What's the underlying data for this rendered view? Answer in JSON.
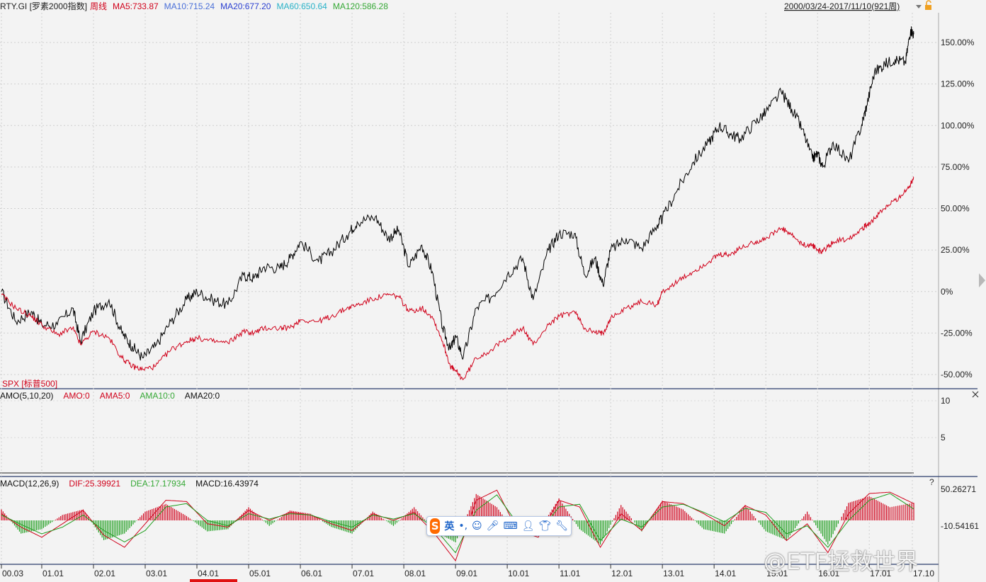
{
  "header": {
    "symbol": "RTY.GI [罗素2000指数]",
    "period": "周线",
    "ma": [
      {
        "label": "MA5:733.87",
        "color": "#d0021b"
      },
      {
        "label": "MA10:715.24",
        "color": "#4a6fd8"
      },
      {
        "label": "MA20:677.20",
        "color": "#2a3fd0"
      },
      {
        "label": "MA60:650.64",
        "color": "#2ab2c8"
      },
      {
        "label": "MA120:586.28",
        "color": "#36a836"
      }
    ],
    "range": "2000/03/24-2017/11/10(921周)"
  },
  "overlay_label": "SPX [标普500]",
  "amo": {
    "items": [
      {
        "label": "AMO(5,10,20)",
        "color": "#111111"
      },
      {
        "label": "AMO:0",
        "color": "#d0021b"
      },
      {
        "label": "AMA5:0",
        "color": "#d0021b"
      },
      {
        "label": "AMA10:0",
        "color": "#36a836"
      },
      {
        "label": "AMA20:0",
        "color": "#111111"
      }
    ],
    "ticks": [
      "10",
      "5"
    ]
  },
  "macd": {
    "items": [
      {
        "label": "MACD(12,26,9)",
        "color": "#111111"
      },
      {
        "label": "DIF:25.39921",
        "color": "#d0021b"
      },
      {
        "label": "DEA:17.17934",
        "color": "#36a836"
      },
      {
        "label": "MACD:16.43974",
        "color": "#111111"
      }
    ],
    "ticks": [
      "50.26271",
      "-10.54161"
    ],
    "help": "?"
  },
  "ime": {
    "logo": "S",
    "lang": "英",
    "punct": "•,"
  },
  "watermark": "@ETF拯救世界",
  "colors": {
    "rty": "#000000",
    "spx": "#d0021b",
    "macd_pos": "#d0021b",
    "macd_neg": "#1f9e1f",
    "grid": "#c9c9c9"
  },
  "chart_data": [
    {
      "type": "line",
      "title": "RTY.GI [罗素2000指数] 周线",
      "xlabel": "",
      "ylabel": "",
      "x_ticks": [
        "00.03",
        "01.01",
        "02.01",
        "03.01",
        "04.01",
        "05.01",
        "06.01",
        "07.01",
        "08.01",
        "09.01",
        "10.01",
        "11.01",
        "12.01",
        "13.01",
        "14.01",
        "15.01",
        "16.01",
        "17.01",
        "17.10"
      ],
      "y_ticks": [
        "150.00%",
        "125.00%",
        "100.00%",
        "75.00%",
        "50.00%",
        "25.00%",
        "0%",
        "-25.00%",
        "-50.00%"
      ],
      "ylim": [
        -50,
        160
      ],
      "series": [
        {
          "name": "RTY.GI",
          "color": "#000000",
          "x": [
            2000.22,
            2000.5,
            2000.8,
            2001.0,
            2001.3,
            2001.6,
            2001.75,
            2002.0,
            2002.3,
            2002.55,
            2002.75,
            2002.95,
            2003.2,
            2003.5,
            2003.8,
            2004.0,
            2004.3,
            2004.6,
            2004.9,
            2005.1,
            2005.3,
            2005.6,
            2005.8,
            2006.0,
            2006.35,
            2006.6,
            2006.9,
            2007.1,
            2007.45,
            2007.7,
            2007.9,
            2008.1,
            2008.35,
            2008.55,
            2008.75,
            2008.9,
            2009.0,
            2009.15,
            2009.4,
            2009.7,
            2010.0,
            2010.3,
            2010.5,
            2010.8,
            2011.0,
            2011.3,
            2011.5,
            2011.7,
            2011.85,
            2012.0,
            2012.3,
            2012.6,
            2012.9,
            2013.0,
            2013.3,
            2013.6,
            2013.9,
            2014.1,
            2014.3,
            2014.5,
            2014.8,
            2015.0,
            2015.3,
            2015.5,
            2015.7,
            2015.9,
            2016.0,
            2016.1,
            2016.3,
            2016.6,
            2016.85,
            2016.95,
            2017.1,
            2017.3,
            2017.5,
            2017.7,
            2017.8,
            2017.86
          ],
          "y": [
            0,
            -18,
            -12,
            -20,
            -20,
            -10,
            -30,
            -12,
            -5,
            -25,
            -33,
            -40,
            -33,
            -18,
            -5,
            0,
            -5,
            -8,
            10,
            8,
            15,
            14,
            20,
            30,
            18,
            24,
            34,
            42,
            45,
            32,
            37,
            15,
            28,
            12,
            -22,
            -35,
            -27,
            -40,
            -10,
            -3,
            10,
            20,
            -5,
            25,
            35,
            35,
            10,
            20,
            4,
            25,
            32,
            26,
            40,
            44,
            62,
            78,
            90,
            100,
            95,
            92,
            102,
            108,
            120,
            110,
            98,
            80,
            83,
            75,
            90,
            78,
            100,
            112,
            132,
            137,
            140,
            138,
            158,
            155
          ]
        },
        {
          "name": "SPX [标普500]",
          "color": "#d0021b",
          "x": [
            2000.22,
            2000.5,
            2000.8,
            2001.0,
            2001.3,
            2001.6,
            2001.75,
            2002.0,
            2002.3,
            2002.55,
            2002.75,
            2002.95,
            2003.2,
            2003.5,
            2003.8,
            2004.0,
            2004.3,
            2004.6,
            2004.9,
            2005.1,
            2005.3,
            2005.6,
            2005.8,
            2006.0,
            2006.35,
            2006.6,
            2006.9,
            2007.1,
            2007.45,
            2007.7,
            2007.9,
            2008.1,
            2008.35,
            2008.55,
            2008.75,
            2008.9,
            2009.0,
            2009.15,
            2009.4,
            2009.7,
            2010.0,
            2010.3,
            2010.5,
            2010.8,
            2011.0,
            2011.3,
            2011.5,
            2011.7,
            2011.85,
            2012.0,
            2012.3,
            2012.6,
            2012.9,
            2013.0,
            2013.3,
            2013.6,
            2013.9,
            2014.1,
            2014.3,
            2014.5,
            2014.8,
            2015.0,
            2015.3,
            2015.5,
            2015.7,
            2015.9,
            2016.0,
            2016.1,
            2016.3,
            2016.6,
            2016.85,
            2016.95,
            2017.1,
            2017.3,
            2017.5,
            2017.7,
            2017.8,
            2017.86
          ],
          "y": [
            -2,
            -10,
            -15,
            -20,
            -26,
            -22,
            -32,
            -24,
            -28,
            -40,
            -45,
            -47,
            -45,
            -35,
            -30,
            -28,
            -30,
            -31,
            -24,
            -25,
            -22,
            -22,
            -22,
            -17,
            -18,
            -15,
            -10,
            -8,
            -4,
            -2,
            -3,
            -12,
            -10,
            -15,
            -30,
            -45,
            -48,
            -53,
            -40,
            -35,
            -28,
            -22,
            -32,
            -20,
            -15,
            -12,
            -22,
            -25,
            -25,
            -16,
            -10,
            -6,
            -8,
            0,
            6,
            12,
            18,
            22,
            22,
            26,
            30,
            32,
            38,
            34,
            28,
            28,
            25,
            24,
            30,
            32,
            38,
            40,
            44,
            50,
            55,
            60,
            65,
            69
          ]
        }
      ]
    },
    {
      "type": "bar",
      "title": "MACD(12,26,9)",
      "series_labels": [
        "DIF:25.39921",
        "DEA:17.17934",
        "MACD:16.43974"
      ],
      "y_ticks": [
        "50.26271",
        "-10.54161"
      ],
      "x": [
        2000.22,
        2000.6,
        2001.0,
        2001.4,
        2001.8,
        2002.2,
        2002.6,
        2003.0,
        2003.4,
        2003.8,
        2004.2,
        2004.6,
        2005.0,
        2005.4,
        2005.8,
        2006.2,
        2006.6,
        2007.0,
        2007.4,
        2007.8,
        2008.2,
        2008.6,
        2009.0,
        2009.4,
        2009.8,
        2010.2,
        2010.6,
        2011.0,
        2011.4,
        2011.8,
        2012.2,
        2012.6,
        2013.0,
        2013.4,
        2013.8,
        2014.2,
        2014.6,
        2015.0,
        2015.4,
        2015.8,
        2016.2,
        2016.6,
        2017.0,
        2017.4,
        2017.86
      ],
      "macd": [
        10,
        -12,
        -8,
        5,
        10,
        -18,
        -12,
        8,
        15,
        4,
        -10,
        -8,
        12,
        -5,
        9,
        6,
        -6,
        -12,
        8,
        -5,
        12,
        -10,
        -20,
        24,
        12,
        -14,
        -10,
        20,
        -8,
        -22,
        14,
        -10,
        18,
        10,
        -8,
        -12,
        14,
        -10,
        -18,
        8,
        -22,
        16,
        22,
        12,
        16
      ],
      "dif": [
        10,
        -10,
        -25,
        -5,
        15,
        -22,
        -40,
        -5,
        30,
        28,
        -5,
        -10,
        15,
        0,
        12,
        8,
        -5,
        -15,
        10,
        0,
        12,
        -20,
        -60,
        30,
        45,
        -15,
        -25,
        30,
        20,
        -40,
        10,
        -15,
        28,
        25,
        10,
        -8,
        22,
        8,
        -30,
        -5,
        -48,
        10,
        40,
        42,
        25
      ],
      "dea": [
        8,
        -6,
        -20,
        -10,
        8,
        -15,
        -32,
        -15,
        20,
        25,
        0,
        -8,
        10,
        2,
        10,
        8,
        -2,
        -10,
        8,
        2,
        10,
        -12,
        -48,
        15,
        38,
        -5,
        -20,
        20,
        24,
        -30,
        2,
        -10,
        20,
        24,
        12,
        -2,
        18,
        12,
        -20,
        -8,
        -40,
        0,
        30,
        40,
        17
      ]
    }
  ]
}
